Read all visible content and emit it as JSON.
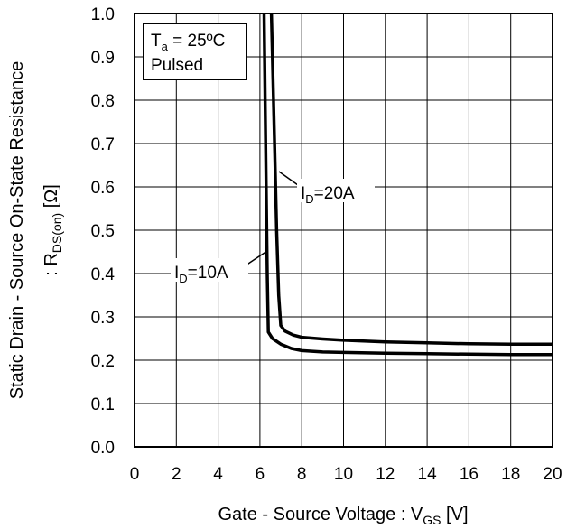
{
  "chart_data": {
    "type": "line",
    "title": "",
    "xlabel": {
      "main": "Gate - Source Voltage : V",
      "sub": "GS",
      "unit": " [V]"
    },
    "ylabel": {
      "line1": "Static Drain - Source On-State Resistance",
      "line2_prefix": ": R",
      "line2_sub": "DS(on)",
      "line2_unit": " [Ω]"
    },
    "xlim": [
      0,
      20
    ],
    "ylim": [
      0,
      1.0
    ],
    "x_ticks": [
      0,
      2,
      4,
      6,
      8,
      10,
      12,
      14,
      16,
      18,
      20
    ],
    "y_ticks": [
      "0.0",
      "0.1",
      "0.2",
      "0.3",
      "0.4",
      "0.5",
      "0.6",
      "0.7",
      "0.8",
      "0.9",
      "1.0"
    ],
    "grid": true,
    "conditions": {
      "ta_prefix": "T",
      "ta_sub": "a",
      "ta_value": " = 25ºC",
      "pulsed": "Pulsed"
    },
    "series": [
      {
        "name": "ID=10A",
        "label_prefix": "I",
        "label_sub": "D",
        "label_value": "=10A",
        "x": [
          6.2,
          6.3,
          6.35,
          6.4,
          6.6,
          7.0,
          7.5,
          8.0,
          9.0,
          10,
          12,
          14,
          16,
          18,
          20
        ],
        "y": [
          1.0,
          0.6,
          0.4,
          0.265,
          0.25,
          0.237,
          0.227,
          0.222,
          0.219,
          0.218,
          0.216,
          0.215,
          0.214,
          0.213,
          0.213
        ]
      },
      {
        "name": "ID=20A",
        "label_prefix": "I",
        "label_sub": "D",
        "label_value": "=20A",
        "x": [
          6.55,
          6.7,
          6.8,
          6.9,
          7.0,
          7.2,
          7.6,
          8.0,
          9.0,
          10,
          12,
          14,
          16,
          18,
          20
        ],
        "y": [
          1.0,
          0.7,
          0.5,
          0.35,
          0.28,
          0.267,
          0.258,
          0.253,
          0.249,
          0.246,
          0.242,
          0.24,
          0.238,
          0.237,
          0.237
        ]
      }
    ]
  }
}
